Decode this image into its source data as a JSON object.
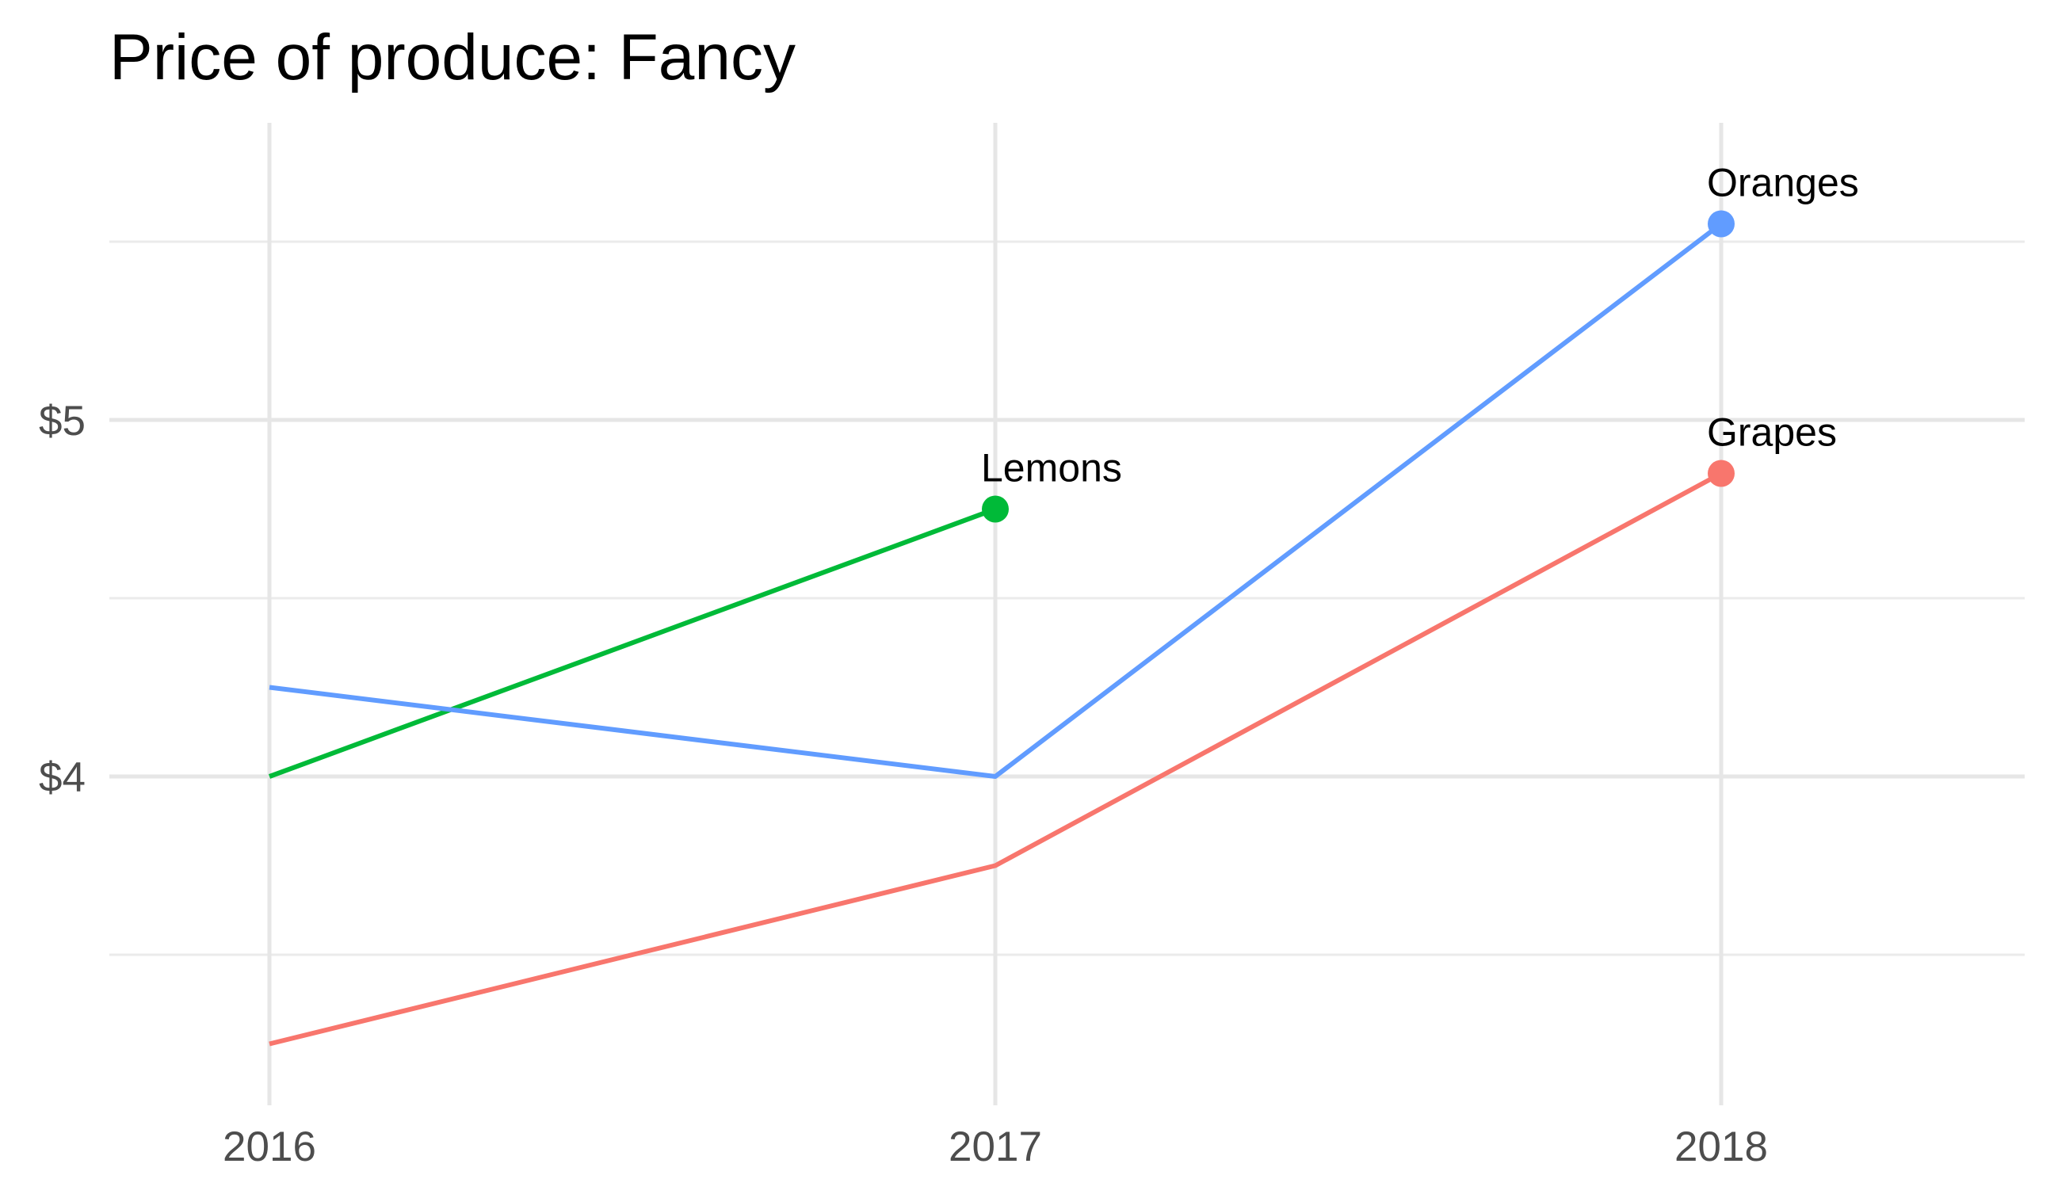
{
  "chart_data": {
    "type": "line",
    "title": "Price of produce: Fancy",
    "xlabel": "",
    "ylabel": "",
    "categories": [
      "2016",
      "2017",
      "2018"
    ],
    "y_major_ticks": [
      4,
      5
    ],
    "y_tick_labels": [
      "$4",
      "$5"
    ],
    "y_minor_ticks": [
      3.5,
      4.5,
      5.5
    ],
    "ylim": [
      3.2,
      5.8
    ],
    "grid": true,
    "legend": "none (direct end labels)",
    "series": [
      {
        "name": "Grapes",
        "color": "#F8766D",
        "values": [
          3.25,
          3.75,
          4.85
        ],
        "label_point": 2
      },
      {
        "name": "Lemons",
        "color": "#00BA38",
        "values": [
          4.0,
          4.75,
          null
        ],
        "label_point": 1
      },
      {
        "name": "Oranges",
        "color": "#619CFF",
        "values": [
          4.25,
          4.0,
          5.55
        ],
        "label_point": 2
      }
    ]
  }
}
